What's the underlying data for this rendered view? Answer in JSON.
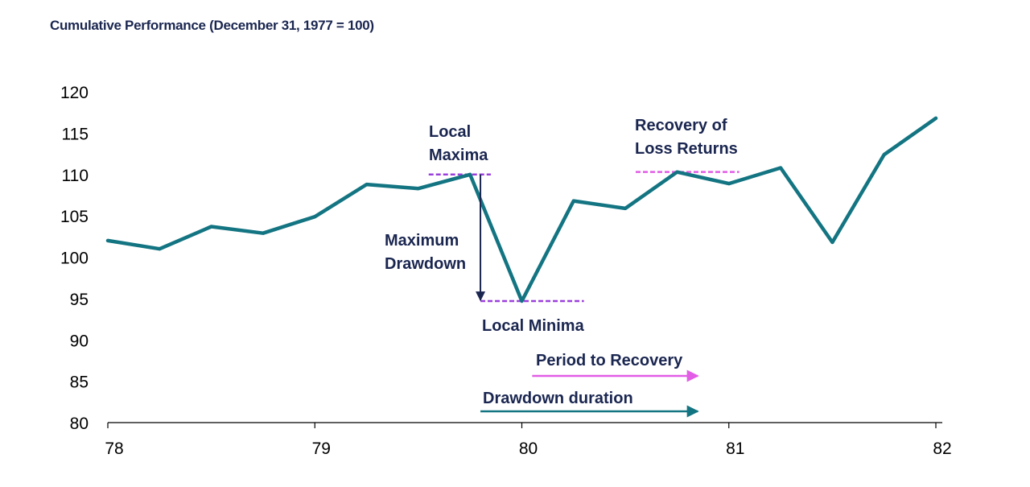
{
  "chart_data": {
    "type": "line",
    "title": "Cumulative Performance (December 31, 1977 = 100)",
    "xlabel": "",
    "ylabel": "",
    "xlim": [
      78,
      82
    ],
    "ylim": [
      80,
      120
    ],
    "x_ticks": [
      "78",
      "79",
      "80",
      "81",
      "82"
    ],
    "y_ticks": [
      "80",
      "85",
      "90",
      "95",
      "100",
      "105",
      "110",
      "115",
      "120"
    ],
    "grid": false,
    "series": [
      {
        "color": "#137482",
        "x": [
          78.0,
          78.25,
          78.5,
          78.75,
          79.0,
          79.25,
          79.5,
          79.75,
          80.0,
          80.25,
          80.5,
          80.75,
          81.0,
          81.25,
          81.5,
          81.75,
          82.0
        ],
        "y": [
          102.0,
          101.0,
          103.7,
          102.9,
          104.9,
          108.8,
          108.3,
          110.0,
          94.7,
          106.8,
          105.9,
          110.3,
          108.9,
          110.8,
          101.8,
          112.4,
          116.8
        ]
      }
    ],
    "annotations": {
      "local_maxima": {
        "lines": [
          "Local",
          "Maxima"
        ],
        "value": 110.0,
        "x_range": [
          79.55,
          79.85
        ],
        "color": "#9b3fdc"
      },
      "local_minima": {
        "text": "Local Minima",
        "value": 94.7,
        "x_range": [
          79.8,
          80.3
        ],
        "color": "#9b3fdc"
      },
      "maximum_drawdown": {
        "lines": [
          "Maximum",
          "Drawdown"
        ],
        "x": 79.8,
        "from": 110.0,
        "to": 94.7,
        "color": "#1a2650"
      },
      "recovery": {
        "lines": [
          "Recovery of",
          "Loss Returns"
        ],
        "value": 110.3,
        "x_range": [
          80.55,
          81.05
        ],
        "color": "#e25ce6"
      },
      "period_to_recovery": {
        "text": "Period to Recovery",
        "from": 80.05,
        "to": 80.85,
        "color": "#e25ce6"
      },
      "drawdown_duration": {
        "text": "Drawdown duration",
        "from": 79.8,
        "to": 80.85,
        "color": "#137482"
      }
    }
  }
}
